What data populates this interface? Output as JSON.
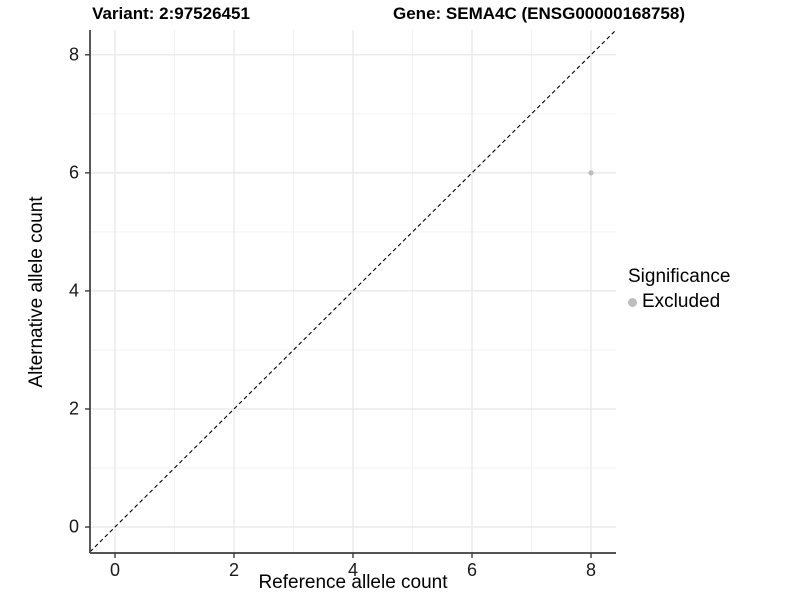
{
  "colors": {
    "background": "#ffffff",
    "grid_major": "#e6e6e6",
    "grid_minor": "#f2f2f2",
    "axis": "#3c3c3c",
    "abline": "#000000",
    "point": "#bebebe",
    "text": "#000000"
  },
  "chart_data": {
    "type": "scatter",
    "title_left": "Variant: 2:97526451",
    "title_right": "Gene: SEMA4C (ENSG00000168758)",
    "xlabel": "Reference allele count",
    "ylabel": "Alternative allele count",
    "xlim": [
      -0.42,
      8.42
    ],
    "ylim": [
      -0.44,
      8.42
    ],
    "x_ticks": [
      0,
      2,
      4,
      6,
      8
    ],
    "y_ticks": [
      0,
      2,
      4,
      6,
      8
    ],
    "x_minor": [
      1,
      3,
      5,
      7
    ],
    "y_minor": [
      1,
      3,
      5,
      7
    ],
    "grid": true,
    "legend_position": "right",
    "legend": {
      "title": "Significance",
      "items": [
        {
          "label": "Excluded",
          "color": "#bebebe",
          "marker": "circle"
        }
      ]
    },
    "points": [
      {
        "x": 8,
        "y": 6,
        "series": "Excluded"
      }
    ],
    "reference_line": {
      "type": "abline",
      "slope": 1,
      "intercept": 0,
      "style": "dashed"
    }
  }
}
